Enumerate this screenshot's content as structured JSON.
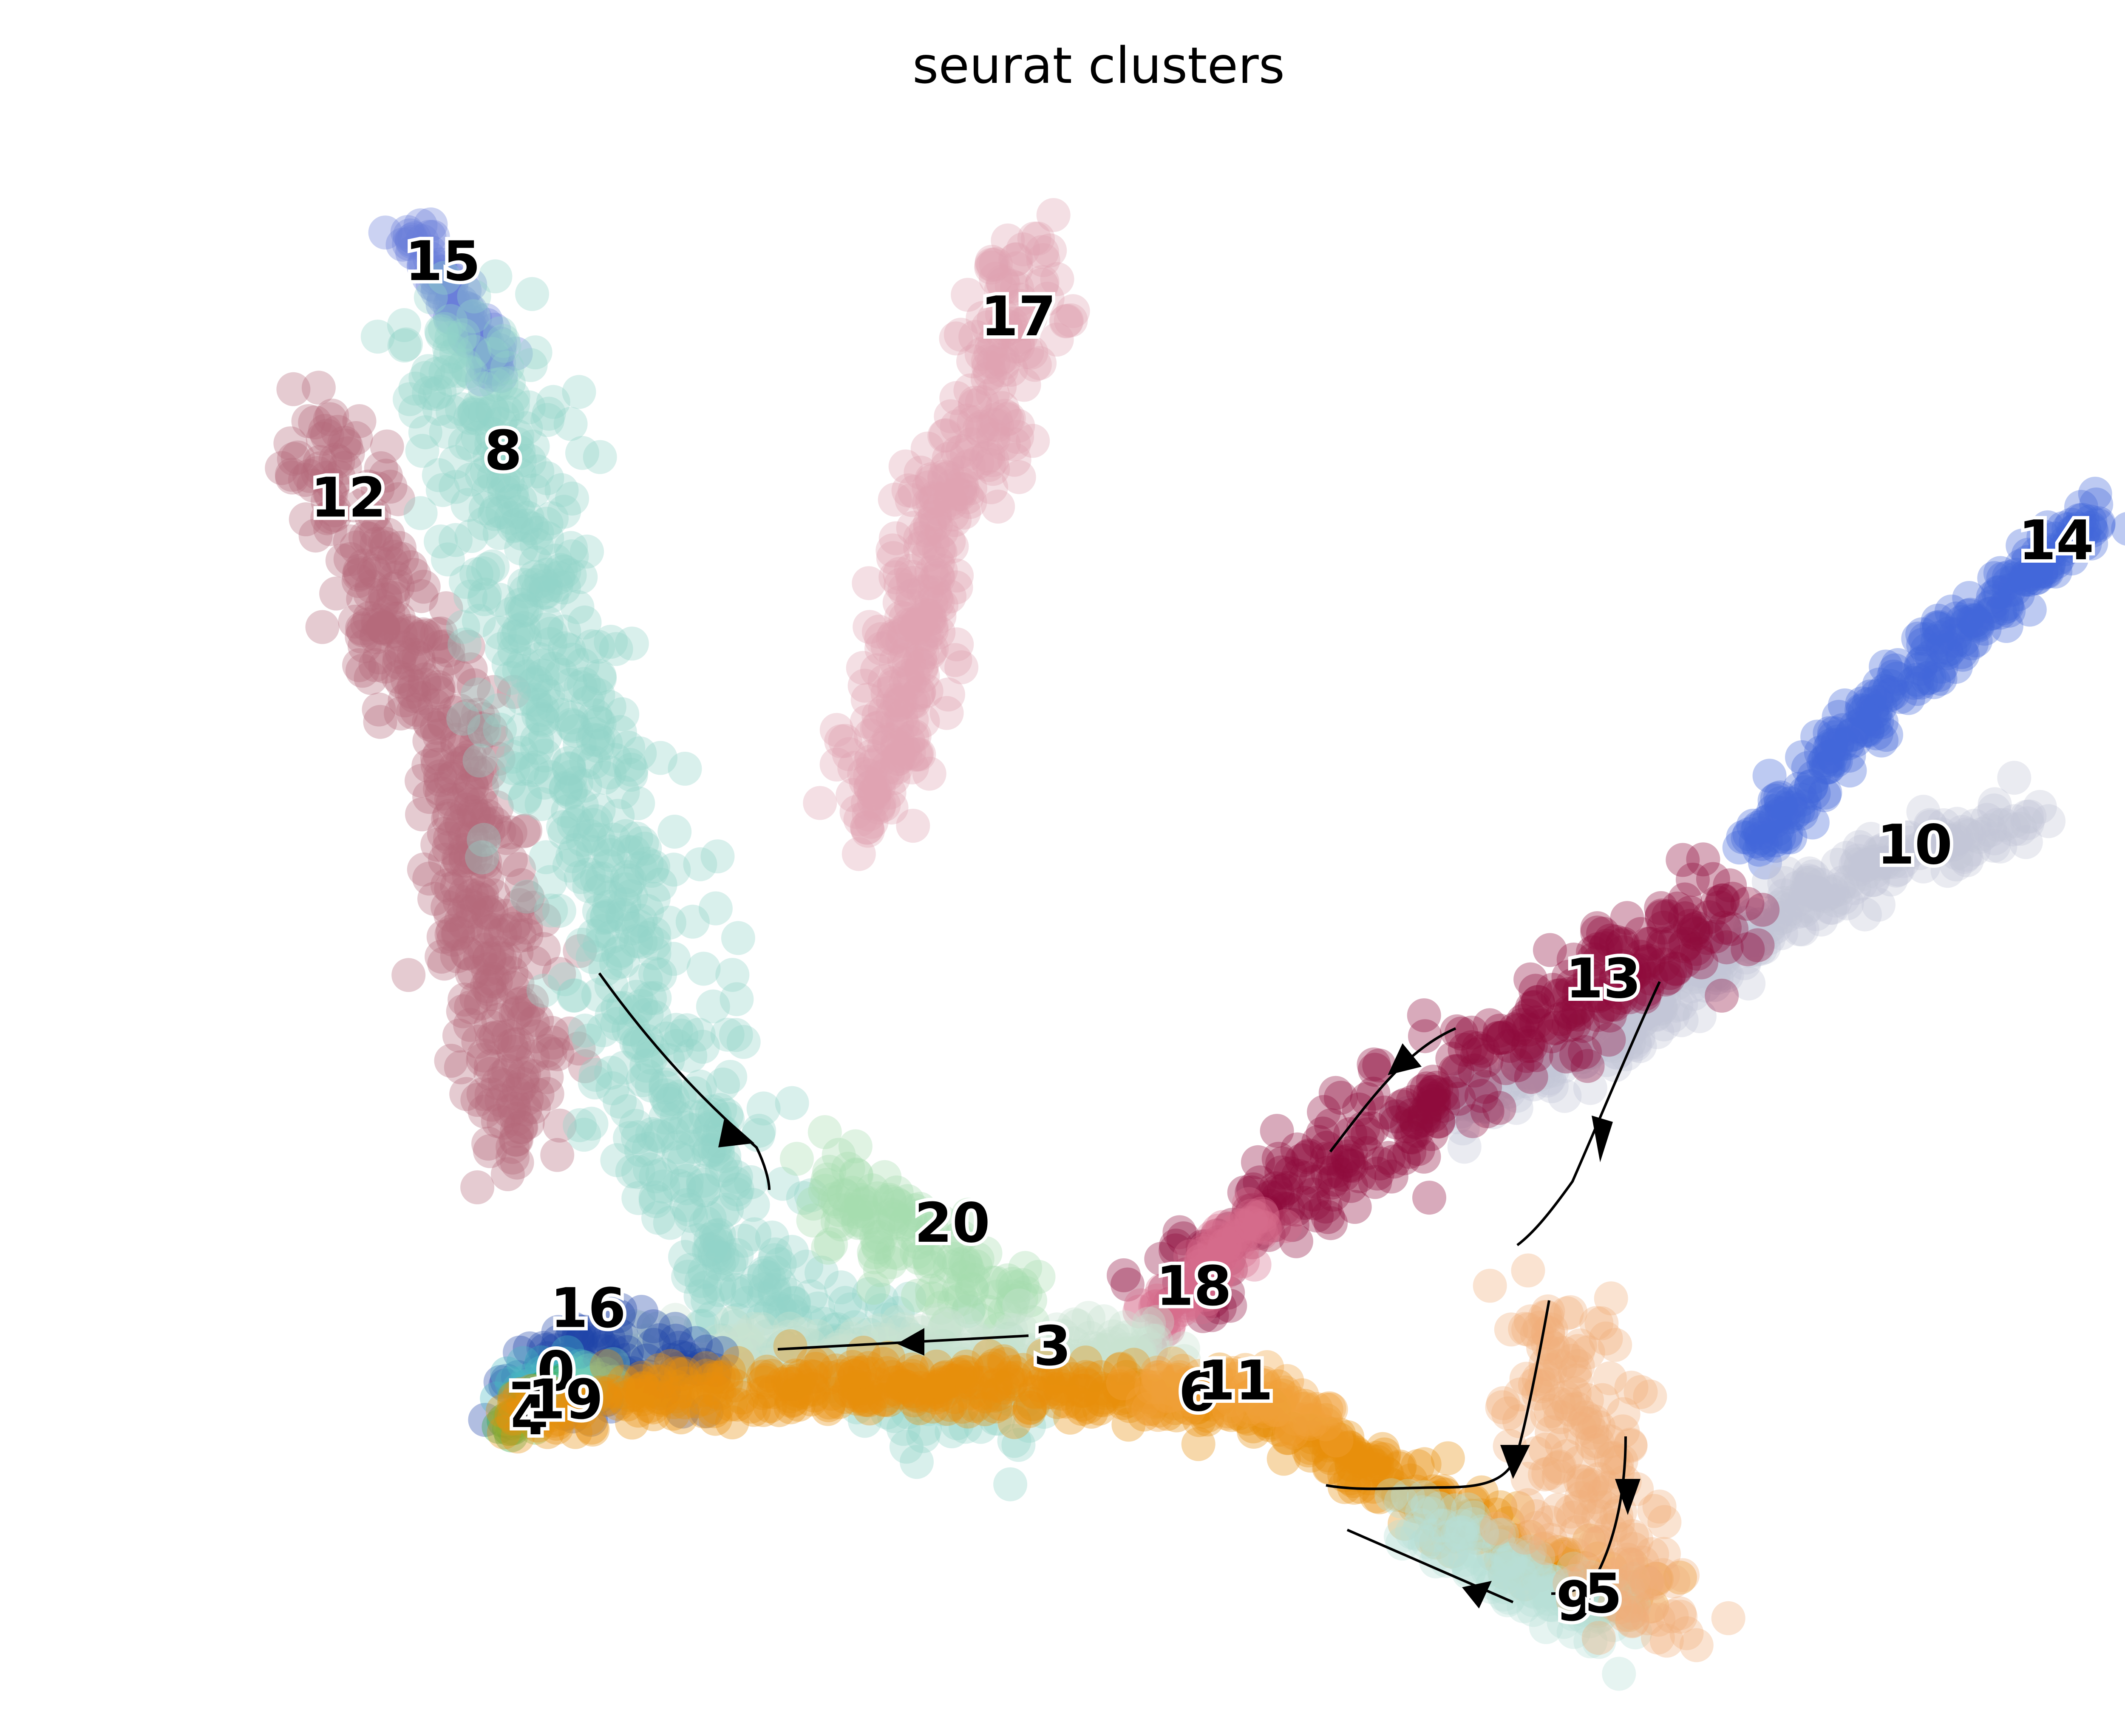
{
  "chart_data": {
    "type": "scatter",
    "title": "seurat clusters",
    "xlabel": "",
    "ylabel": "",
    "xlim": [
      0,
      100
    ],
    "ylim": [
      0,
      100
    ],
    "axes_visible": false,
    "grid": false,
    "legend": "on-data",
    "point_alpha": 0.35,
    "clusters": [
      {
        "label": "15",
        "color": "#6a7fd9",
        "x": 9.5,
        "y": 91.0,
        "path": [
          [
            7.8,
            93.0
          ],
          [
            9.5,
            90.0
          ],
          [
            11.5,
            86.0
          ],
          [
            12.5,
            84.0
          ]
        ],
        "spread": 0.5
      },
      {
        "label": "17",
        "color": "#e0a4b1",
        "x": 40.0,
        "y": 87.5,
        "path": [
          [
            41.0,
            92.0
          ],
          [
            40.0,
            88.0
          ],
          [
            38.5,
            81.0
          ],
          [
            36.0,
            76.0
          ],
          [
            34.0,
            64.0
          ],
          [
            31.5,
            55.0
          ]
        ],
        "spread": 1.2
      },
      {
        "label": "12",
        "color": "#b56a7c",
        "x": 4.5,
        "y": 76.0,
        "path": [
          [
            3.0,
            81.0
          ],
          [
            4.5,
            76.0
          ],
          [
            7.0,
            68.0
          ],
          [
            9.5,
            62.0
          ],
          [
            11.0,
            55.0
          ],
          [
            12.0,
            45.0
          ],
          [
            14.0,
            35.0
          ]
        ],
        "spread": 1.4
      },
      {
        "label": "8",
        "color": "#93d4c8",
        "x": 12.7,
        "y": 79.0,
        "path": [
          [
            10.0,
            87.0
          ],
          [
            12.7,
            80.0
          ],
          [
            14.5,
            70.0
          ],
          [
            16.5,
            60.0
          ],
          [
            18.5,
            50.0
          ],
          [
            21.0,
            40.0
          ],
          [
            23.0,
            32.0
          ],
          [
            28.0,
            23.0
          ],
          [
            40.0,
            19.0
          ]
        ],
        "spread": 2.2
      },
      {
        "label": "14",
        "color": "#4166d9",
        "x": 95.0,
        "y": 73.3,
        "path": [
          [
            97.5,
            75.0
          ],
          [
            95.0,
            73.0
          ],
          [
            91.0,
            69.0
          ],
          [
            86.0,
            63.5
          ],
          [
            82.0,
            58.0
          ],
          [
            79.0,
            54.0
          ]
        ],
        "spread": 0.7
      },
      {
        "label": "10",
        "color": "#c2c5d6",
        "x": 87.5,
        "y": 54.0,
        "path": [
          [
            93.5,
            56.0
          ],
          [
            87.5,
            54.0
          ],
          [
            82.0,
            51.0
          ],
          [
            78.0,
            48.0
          ],
          [
            72.0,
            42.0
          ],
          [
            62.0,
            37.0
          ]
        ],
        "spread": 0.9
      },
      {
        "label": "13",
        "color": "#8e0c3b",
        "x": 71.0,
        "y": 45.5,
        "path": [
          [
            78.0,
            51.0
          ],
          [
            75.0,
            48.0
          ],
          [
            71.0,
            45.5
          ],
          [
            66.0,
            42.0
          ],
          [
            61.0,
            38.0
          ],
          [
            55.0,
            32.0
          ],
          [
            50.0,
            28.0
          ],
          [
            48.0,
            26.0
          ]
        ],
        "spread": 1.4
      },
      {
        "label": "20",
        "color": "#a6dcb0",
        "x": 36.5,
        "y": 30.0,
        "path": [
          [
            30.0,
            34.0
          ],
          [
            33.0,
            30.0
          ],
          [
            36.5,
            27.0
          ],
          [
            40.0,
            25.0
          ]
        ],
        "spread": 1.6
      },
      {
        "label": "18",
        "color": "#d66d8c",
        "x": 49.3,
        "y": 26.0,
        "path": [
          [
            53.0,
            31.0
          ],
          [
            50.5,
            28.0
          ],
          [
            48.5,
            25.5
          ],
          [
            47.0,
            24.0
          ]
        ],
        "spread": 0.6
      },
      {
        "label": "3",
        "color": "#c8e3d2",
        "x": 41.8,
        "y": 22.2,
        "path": [
          [
            16.0,
            21.0
          ],
          [
            25.0,
            21.5
          ],
          [
            35.0,
            22.0
          ],
          [
            42.0,
            22.3
          ],
          [
            48.0,
            22.5
          ]
        ],
        "spread": 1.0
      },
      {
        "label": "16",
        "color": "#1f45a8",
        "x": 17.2,
        "y": 24.6,
        "path": [
          [
            14.0,
            20.0
          ],
          [
            17.0,
            22.5
          ],
          [
            20.5,
            22.0
          ],
          [
            23.0,
            21.5
          ]
        ],
        "spread": 1.3
      },
      {
        "label": "0",
        "color": "#49b9c4",
        "x": 15.5,
        "y": 20.6,
        "path": [
          [
            13.5,
            20.0
          ],
          [
            15.5,
            20.5
          ],
          [
            17.5,
            20.0
          ]
        ],
        "spread": 0.7
      },
      {
        "label": "7",
        "color": "#2ca63d",
        "x": 14.0,
        "y": 18.6,
        "path": [
          [
            12.7,
            17.2
          ],
          [
            14.0,
            18.5
          ],
          [
            15.5,
            20.0
          ]
        ],
        "spread": 0.4
      },
      {
        "label": "4",
        "color": "#6cc24e",
        "x": 14.1,
        "y": 17.8,
        "path": [
          [
            13.2,
            17.5
          ],
          [
            14.5,
            18.5
          ],
          [
            16.0,
            19.5
          ]
        ],
        "spread": 0.4
      },
      {
        "label": "19",
        "color": "#73cdb8",
        "x": 16.0,
        "y": 18.8,
        "path": [
          [
            15.0,
            19.0
          ],
          [
            16.5,
            19.5
          ],
          [
            18.5,
            20.0
          ]
        ],
        "spread": 0.5
      },
      {
        "label": "6",
        "color": "#e88f0c",
        "x": 49.5,
        "y": 19.3,
        "path": [
          [
            13.5,
            18.0
          ],
          [
            20.0,
            19.5
          ],
          [
            30.0,
            20.0
          ],
          [
            40.0,
            19.8
          ],
          [
            48.0,
            19.2
          ],
          [
            55.0,
            17.0
          ],
          [
            62.0,
            12.5
          ],
          [
            68.0,
            8.5
          ],
          [
            73.0,
            6.5
          ]
        ],
        "spread": 0.9
      },
      {
        "label": "11",
        "color": "#f0a03a",
        "x": 51.5,
        "y": 20.0,
        "path": [
          [
            47.0,
            19.8
          ],
          [
            52.0,
            19.5
          ],
          [
            56.0,
            17.5
          ]
        ],
        "spread": 0.8
      },
      {
        "label": "9",
        "color": "#b7e0d8",
        "x": 69.5,
        "y": 6.0,
        "path": [
          [
            61.0,
            12.0
          ],
          [
            65.0,
            9.0
          ],
          [
            69.5,
            6.0
          ],
          [
            72.5,
            4.5
          ]
        ],
        "spread": 1.0
      },
      {
        "label": "5",
        "color": "#f2b07a",
        "x": 71.0,
        "y": 6.5,
        "path": [
          [
            68.0,
            24.0
          ],
          [
            70.0,
            16.0
          ],
          [
            71.0,
            10.0
          ],
          [
            72.5,
            7.0
          ],
          [
            74.5,
            5.5
          ]
        ],
        "spread": 1.8
      }
    ]
  }
}
